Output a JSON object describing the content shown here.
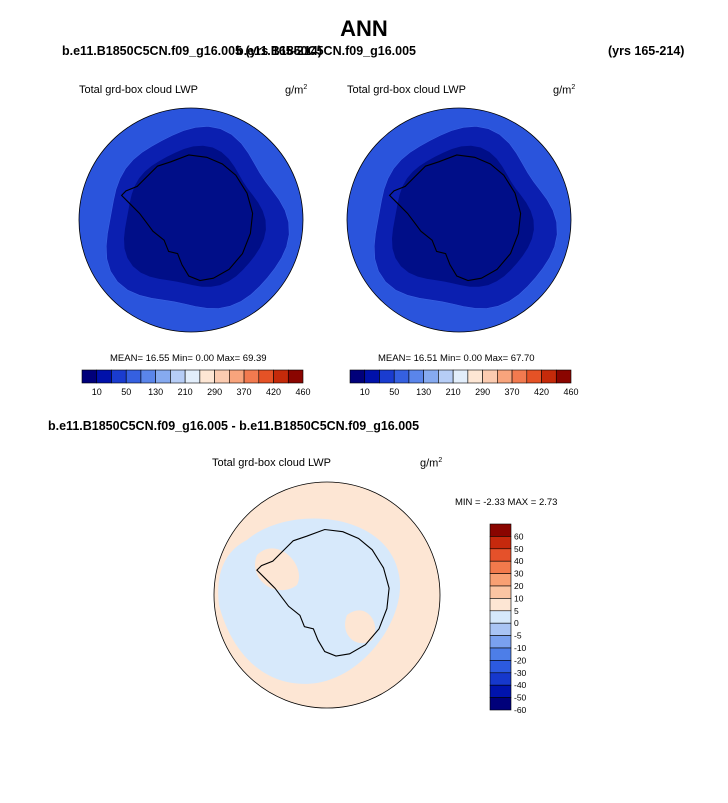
{
  "header": {
    "title": "ANN",
    "case_left": "b.e11.B1850C5CN.f09_g16.005 (yrs 165-214)",
    "case_right": "b.e11.B1850C5CN.f09_g16.005",
    "years_right": "(yrs 165-214)"
  },
  "panels": [
    {
      "variable": "Total grd-box cloud LWP",
      "units": "g/m",
      "units_exp": "2",
      "stats": "MEAN=  16.55  Min=   0.00  Max=  69.39"
    },
    {
      "variable": "Total grd-box cloud LWP",
      "units": "g/m",
      "units_exp": "2",
      "stats": "MEAN=  16.51  Min=   0.00  Max=  67.70"
    }
  ],
  "diff": {
    "case": "b.e11.B1850C5CN.f09_g16.005 - b.e11.B1850C5CN.f09_g16.005",
    "variable": "Total grd-box cloud LWP",
    "units": "g/m",
    "units_exp": "2",
    "minmax": "MIN =  -2.33 MAX =   2.73"
  },
  "colors": {
    "abs_bar": [
      "#00007a",
      "#0011aa",
      "#1a3ccf",
      "#3560e0",
      "#5a85ea",
      "#86aaf0",
      "#b6cdf6",
      "#e2eefb",
      "#fde6d4",
      "#fbcbb0",
      "#f8a47c",
      "#f27a4f",
      "#e55226",
      "#c52a0a",
      "#8a0500"
    ],
    "diff_bar": [
      "#00007a",
      "#0013ad",
      "#1638cc",
      "#2c5ae0",
      "#4d7ee8",
      "#7aa1ef",
      "#a9c4f4",
      "#d5e8fb",
      "#fde6d4",
      "#fbc5a3",
      "#f8a073",
      "#f27a4c",
      "#e5512a",
      "#c6290d",
      "#8a0500"
    ],
    "map_outer": "#2a54dc",
    "map_mid": "#0b1fb0",
    "map_inner": "#000e88",
    "diff_pos": "#fde6d4",
    "diff_neg": "#d7e9fb"
  },
  "chart_data": [
    {
      "type": "heatmap",
      "subtype": "polar-stereographic contour map",
      "region": "Antarctica / Southern Ocean",
      "variable": "Total grd-box cloud LWP",
      "units": "g/m2",
      "mean": 16.55,
      "min": 0.0,
      "max": 69.39,
      "levels": [
        10,
        50,
        130,
        210,
        290,
        370,
        420,
        460
      ],
      "colorbar_labels": [
        "10",
        "50",
        "130",
        "210",
        "290",
        "370",
        "420",
        "460"
      ]
    },
    {
      "type": "heatmap",
      "subtype": "polar-stereographic contour map",
      "region": "Antarctica / Southern Ocean",
      "variable": "Total grd-box cloud LWP",
      "units": "g/m2",
      "mean": 16.51,
      "min": 0.0,
      "max": 67.7,
      "levels": [
        10,
        50,
        130,
        210,
        290,
        370,
        420,
        460
      ],
      "colorbar_labels": [
        "10",
        "50",
        "130",
        "210",
        "290",
        "370",
        "420",
        "460"
      ]
    },
    {
      "type": "heatmap",
      "subtype": "polar-stereographic difference map",
      "region": "Antarctica / Southern Ocean",
      "variable": "Total grd-box cloud LWP",
      "units": "g/m2",
      "min": -2.33,
      "max": 2.73,
      "levels": [
        -60,
        -50,
        -40,
        -30,
        -20,
        -10,
        -5,
        0,
        5,
        10,
        20,
        30,
        40,
        50,
        60
      ],
      "colorbar_labels": [
        "60",
        "50",
        "40",
        "30",
        "20",
        "10",
        "5",
        "0",
        "-5",
        "-10",
        "-20",
        "-30",
        "-40",
        "-50",
        "-60"
      ]
    }
  ]
}
